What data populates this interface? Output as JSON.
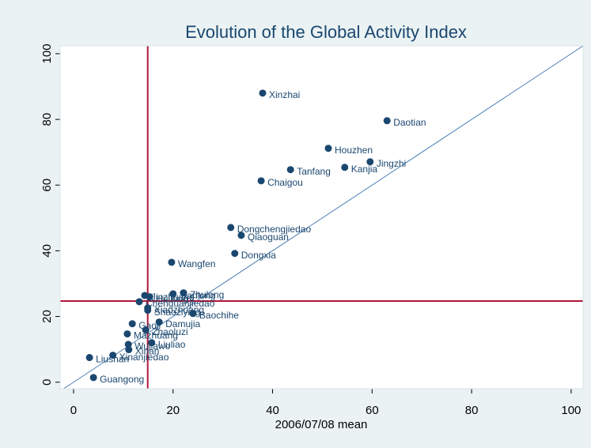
{
  "chart_data": {
    "type": "scatter",
    "title": "Evolution of the Global Activity Index",
    "x_label": "2006/07/08 mean",
    "point_labels": [
      "Xinzhai",
      "Daotian",
      "Houzhen",
      "Jingzhi",
      "Kanjia",
      "Tanfang",
      "Chaigou",
      "Dongchengjiedao",
      "Qiaoguan",
      "Dongxia",
      "Wangfen",
      "Jinzhuang",
      "Huilong",
      "Tianlong",
      "Zhulong",
      "Chenguanjiedao",
      "Xiaozhuang",
      "Shaoziying",
      "Baochihe",
      "Gaoji",
      "Damujia",
      "Mazhuang",
      "Zhaoluzi",
      "Wujiawo",
      "Liuliao",
      "Xinan",
      "Xinanjiedao",
      "Liushan",
      "Guangong"
    ],
    "x": [
      38.0,
      63.0,
      51.2,
      59.6,
      54.5,
      43.6,
      37.7,
      31.6,
      33.7,
      32.4,
      19.7,
      14.3,
      15.3,
      20.0,
      22.1,
      13.2,
      14.9,
      14.9,
      24.0,
      11.8,
      17.2,
      10.8,
      14.5,
      11.0,
      15.7,
      11.1,
      7.9,
      3.2,
      4.0
    ],
    "values": [
      88.0,
      79.6,
      71.2,
      67.1,
      65.4,
      64.7,
      61.3,
      47.1,
      44.7,
      39.2,
      36.5,
      26.4,
      26.0,
      26.9,
      27.2,
      24.5,
      22.6,
      21.9,
      20.9,
      17.8,
      18.3,
      14.7,
      15.9,
      11.5,
      12.0,
      9.9,
      8.2,
      7.5,
      1.4
    ],
    "color": "#1a476f",
    "xlim": [
      -2.7,
      102.4
    ],
    "ylim": [
      -2,
      102.4
    ],
    "xticks": [
      0,
      20,
      40,
      60,
      80,
      100
    ],
    "yticks": [
      0,
      20,
      40,
      60,
      80,
      100
    ],
    "reference_lines": {
      "x": 14.9,
      "y": 24.7,
      "color": "#b0163a"
    },
    "diagonal_color": "#4a7fb5"
  }
}
